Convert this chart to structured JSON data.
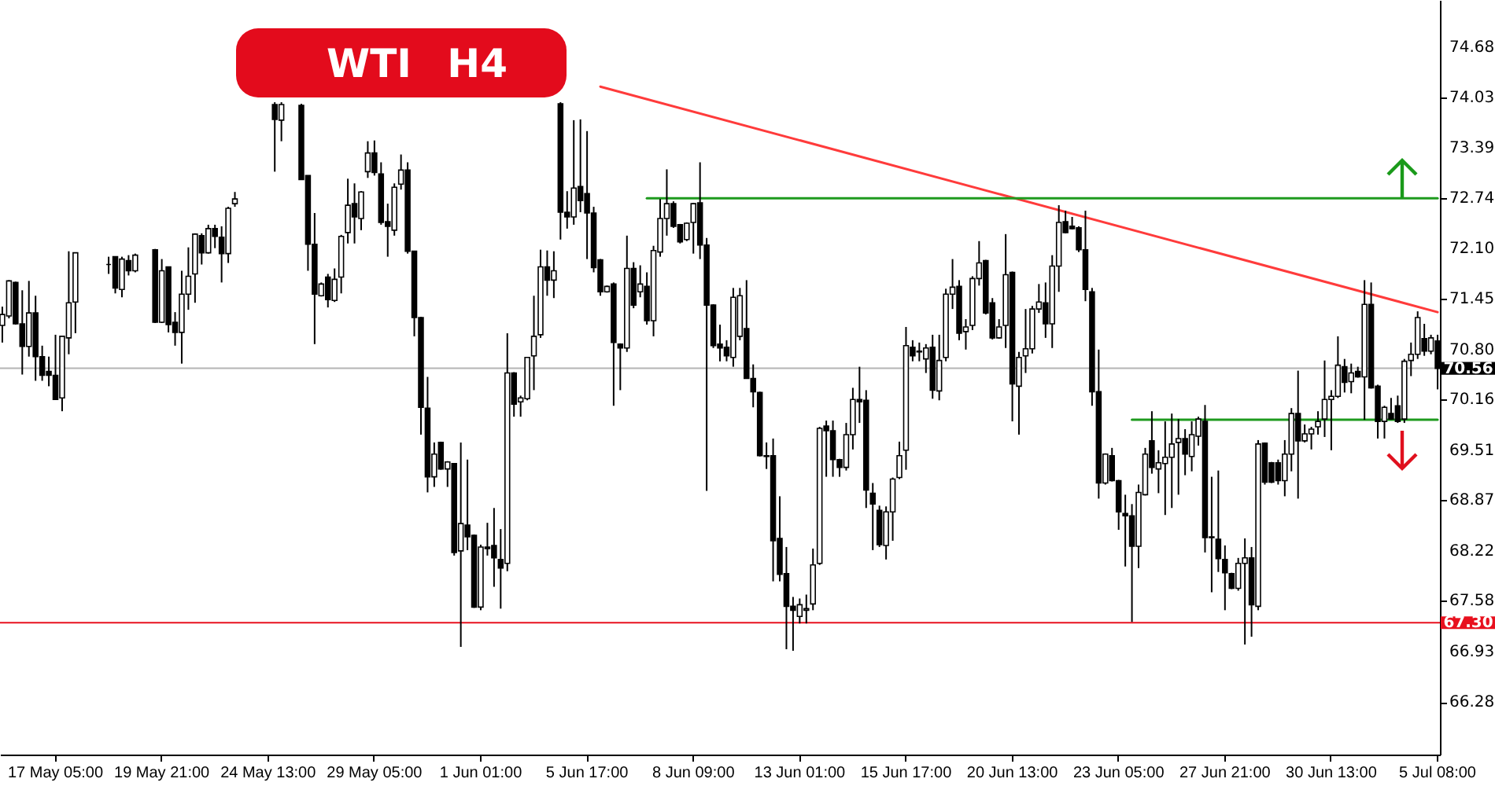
{
  "chart_data": {
    "type": "candlestick",
    "title": "WTI H4",
    "categories": [
      null,
      null,
      null,
      null,
      null,
      null,
      null,
      null,
      "17 May 05:00",
      null,
      null,
      null,
      null,
      null,
      null,
      null,
      null,
      null,
      null,
      null,
      null,
      null,
      null,
      null,
      "19 May 21:00",
      null,
      null,
      null,
      null,
      null,
      null,
      null,
      null,
      null,
      null,
      null,
      null,
      null,
      null,
      null,
      "24 May 13:00",
      null,
      null,
      null,
      null,
      null,
      null,
      null,
      null,
      null,
      null,
      null,
      null,
      null,
      null,
      null,
      "29 May 05:00",
      null,
      null,
      null,
      null,
      null,
      null,
      null,
      null,
      null,
      null,
      null,
      null,
      null,
      null,
      null,
      "1 Jun 01:00",
      null,
      null,
      null,
      null,
      null,
      null,
      null,
      null,
      null,
      null,
      null,
      null,
      null,
      null,
      null,
      "5 Jun 17:00",
      null,
      null,
      null,
      null,
      null,
      null,
      null,
      null,
      null,
      null,
      null,
      null,
      null,
      null,
      null,
      "8 Jun 09:00",
      null,
      null,
      null,
      null,
      null,
      null,
      null,
      null,
      null,
      null,
      null,
      null,
      null,
      null,
      null,
      "13 Jun 01:00",
      null,
      null,
      null,
      null,
      null,
      null,
      null,
      null,
      null,
      null,
      null,
      null,
      null,
      null,
      null,
      "15 Jun 17:00",
      null,
      null,
      null,
      null,
      null,
      null,
      null,
      null,
      null,
      null,
      null,
      null,
      null,
      null,
      null,
      "20 Jun 13:00",
      null,
      null,
      null,
      null,
      null,
      null,
      null,
      null,
      null,
      null,
      null,
      null,
      null,
      null,
      null,
      "23 Jun 05:00",
      null,
      null,
      null,
      null,
      null,
      null,
      null,
      null,
      null,
      null,
      null,
      null,
      null,
      null,
      null,
      "27 Jun 21:00",
      null,
      null,
      null,
      null,
      null,
      null,
      null,
      null,
      null,
      null,
      null,
      null,
      null,
      null,
      null,
      "30 Jun 13:00",
      null,
      null,
      null,
      null,
      null,
      null,
      null,
      null,
      null,
      null,
      null,
      null,
      null,
      null,
      null,
      "5 Jul 08:00"
    ],
    "ohlc": [
      [
        71.11,
        71.35,
        70.89,
        71.25
      ],
      [
        71.23,
        71.69,
        71.2,
        71.68
      ],
      [
        71.66,
        71.67,
        71.12,
        71.13
      ],
      [
        71.13,
        71.56,
        70.48,
        70.84
      ],
      [
        70.84,
        71.68,
        70.71,
        71.27
      ],
      [
        71.27,
        71.49,
        70.4,
        70.71
      ],
      [
        70.71,
        70.85,
        70.4,
        70.47
      ],
      [
        70.52,
        70.71,
        70.33,
        70.47
      ],
      [
        70.47,
        70.99,
        70.16,
        70.16
      ],
      [
        70.18,
        70.97,
        70.01,
        70.97
      ],
      [
        70.95,
        72.06,
        70.74,
        71.4
      ],
      [
        71.41,
        72.04,
        71.01,
        72.04
      ],
      null,
      null,
      null,
      null,
      [
        71.89,
        71.99,
        71.77,
        71.89
      ],
      [
        71.99,
        71.99,
        71.52,
        71.59
      ],
      [
        71.57,
        71.99,
        71.47,
        71.96
      ],
      [
        71.94,
        72.01,
        71.75,
        71.81
      ],
      [
        71.81,
        72.03,
        71.79,
        72.01
      ],
      null,
      null,
      [
        72.08,
        72.09,
        71.14,
        71.15
      ],
      [
        71.15,
        71.96,
        71.14,
        71.81
      ],
      [
        71.86,
        71.86,
        71.02,
        71.12
      ],
      [
        71.15,
        71.28,
        70.85,
        71.02
      ],
      [
        71.02,
        71.81,
        70.62,
        71.51
      ],
      [
        71.51,
        72.11,
        71.31,
        71.74
      ],
      [
        71.77,
        72.29,
        71.4,
        72.28
      ],
      [
        72.26,
        72.29,
        71.89,
        72.04
      ],
      [
        72.04,
        72.4,
        72.03,
        72.35
      ],
      [
        72.35,
        72.4,
        72.1,
        72.25
      ],
      [
        72.24,
        72.38,
        71.66,
        72.03
      ],
      [
        72.03,
        72.63,
        71.91,
        72.61
      ],
      [
        72.67,
        72.82,
        72.63,
        72.73
      ],
      null,
      null,
      null,
      null,
      null,
      [
        73.94,
        73.97,
        73.08,
        73.75
      ],
      [
        73.74,
        73.97,
        73.47,
        73.94
      ],
      null,
      null,
      [
        73.93,
        73.95,
        72.98,
        72.98
      ],
      [
        73.03,
        73.03,
        71.81,
        72.15
      ],
      [
        72.15,
        72.55,
        70.87,
        71.51
      ],
      [
        71.49,
        71.66,
        71.48,
        71.64
      ],
      [
        71.73,
        71.77,
        71.34,
        71.44
      ],
      [
        71.43,
        71.84,
        71.41,
        71.7
      ],
      [
        71.73,
        72.27,
        71.52,
        72.25
      ],
      [
        72.3,
        72.99,
        72.16,
        72.65
      ],
      [
        72.67,
        72.93,
        72.16,
        72.5
      ],
      [
        72.48,
        72.83,
        72.33,
        72.82
      ],
      [
        73.08,
        73.47,
        73.0,
        73.32
      ],
      [
        73.32,
        73.48,
        73.03,
        73.07
      ],
      [
        73.05,
        73.2,
        72.4,
        72.43
      ],
      [
        72.44,
        72.67,
        71.99,
        72.38
      ],
      [
        72.33,
        72.93,
        72.26,
        72.88
      ],
      [
        72.92,
        73.3,
        72.85,
        73.1
      ],
      [
        73.1,
        73.2,
        72.03,
        72.06
      ],
      [
        72.06,
        72.06,
        70.97,
        71.21
      ],
      [
        71.21,
        71.22,
        69.71,
        70.06
      ],
      [
        70.05,
        70.45,
        68.97,
        69.17
      ],
      [
        69.17,
        69.61,
        69.04,
        69.46
      ],
      [
        69.61,
        69.62,
        69.26,
        69.27
      ],
      [
        69.27,
        69.37,
        69.04,
        69.36
      ],
      [
        69.34,
        69.34,
        68.16,
        68.2
      ],
      [
        68.22,
        69.61,
        66.99,
        68.57
      ],
      [
        68.55,
        69.39,
        68.23,
        68.4
      ],
      [
        68.42,
        68.43,
        67.49,
        67.5
      ],
      [
        67.5,
        68.3,
        67.46,
        68.27
      ],
      [
        68.27,
        68.58,
        68.16,
        68.25
      ],
      [
        68.29,
        68.77,
        67.76,
        68.13
      ],
      [
        68.11,
        68.5,
        67.48,
        68.0
      ],
      [
        68.06,
        71.01,
        67.96,
        70.5
      ],
      [
        70.5,
        70.51,
        69.94,
        70.1
      ],
      [
        70.13,
        70.21,
        69.94,
        70.18
      ],
      [
        70.17,
        70.7,
        70.15,
        70.7
      ],
      [
        70.72,
        71.49,
        70.28,
        70.97
      ],
      [
        70.99,
        72.08,
        70.95,
        71.86
      ],
      [
        71.86,
        72.07,
        71.49,
        71.69
      ],
      [
        71.69,
        72.06,
        71.46,
        71.81
      ],
      [
        73.95,
        73.97,
        72.21,
        72.56
      ],
      [
        72.56,
        72.83,
        72.35,
        72.5
      ],
      [
        72.5,
        73.74,
        72.4,
        72.87
      ],
      [
        72.89,
        73.75,
        72.56,
        72.71
      ],
      [
        72.8,
        73.6,
        71.96,
        72.55
      ],
      [
        72.55,
        72.63,
        71.79,
        71.85
      ],
      [
        71.95,
        71.96,
        71.49,
        71.54
      ],
      [
        71.54,
        71.62,
        71.53,
        71.61
      ],
      [
        71.64,
        71.66,
        70.08,
        70.89
      ],
      [
        70.87,
        70.88,
        70.28,
        70.82
      ],
      [
        70.82,
        72.26,
        70.77,
        71.84
      ],
      [
        71.84,
        71.92,
        71.33,
        71.37
      ],
      [
        71.54,
        71.88,
        71.47,
        71.64
      ],
      [
        71.61,
        71.79,
        71.12,
        71.17
      ],
      [
        71.17,
        72.13,
        70.97,
        72.07
      ],
      [
        72.05,
        72.73,
        71.99,
        72.48
      ],
      [
        72.48,
        73.11,
        72.26,
        72.67
      ],
      [
        72.67,
        72.7,
        72.36,
        72.38
      ],
      [
        72.4,
        72.41,
        72.16,
        72.18
      ],
      [
        72.21,
        72.43,
        72.19,
        72.42
      ],
      [
        72.43,
        72.68,
        72.03,
        72.67
      ],
      [
        72.68,
        73.2,
        71.96,
        72.14
      ],
      [
        72.14,
        72.23,
        68.99,
        71.37
      ],
      [
        71.37,
        71.38,
        70.82,
        70.85
      ],
      [
        70.87,
        71.12,
        70.65,
        70.82
      ],
      [
        70.83,
        70.92,
        70.65,
        70.72
      ],
      [
        70.7,
        71.59,
        70.58,
        71.47
      ],
      [
        70.97,
        71.59,
        70.92,
        71.49
      ],
      [
        71.07,
        71.69,
        70.43,
        70.43
      ],
      [
        70.43,
        70.61,
        70.06,
        70.26
      ],
      [
        70.25,
        70.26,
        69.43,
        69.44
      ],
      [
        69.44,
        69.61,
        69.27,
        69.43
      ],
      [
        69.44,
        69.66,
        67.83,
        68.35
      ],
      [
        68.38,
        68.92,
        67.83,
        67.92
      ],
      [
        67.93,
        68.27,
        66.96,
        67.51
      ],
      [
        67.51,
        67.63,
        66.94,
        67.46
      ],
      [
        67.38,
        67.61,
        67.29,
        67.53
      ],
      [
        67.46,
        67.66,
        67.29,
        67.48
      ],
      [
        67.54,
        68.25,
        67.46,
        68.04
      ],
      [
        68.06,
        69.81,
        68.04,
        69.79
      ],
      [
        69.82,
        69.89,
        69.17,
        69.76
      ],
      [
        69.76,
        69.89,
        69.17,
        69.39
      ],
      [
        69.39,
        69.4,
        69.17,
        69.29
      ],
      [
        69.29,
        69.86,
        69.25,
        69.71
      ],
      [
        69.71,
        70.31,
        69.52,
        70.16
      ],
      [
        70.16,
        70.58,
        69.86,
        70.13
      ],
      [
        70.15,
        70.28,
        68.77,
        69.0
      ],
      [
        68.96,
        69.09,
        68.23,
        68.82
      ],
      [
        68.74,
        68.8,
        68.27,
        68.3
      ],
      [
        68.29,
        68.79,
        68.11,
        68.72
      ],
      [
        68.72,
        69.16,
        68.35,
        69.14
      ],
      [
        69.16,
        69.62,
        69.14,
        69.44
      ],
      [
        69.51,
        71.09,
        69.26,
        70.85
      ],
      [
        70.83,
        70.92,
        70.65,
        70.72
      ],
      [
        70.77,
        70.89,
        70.65,
        70.78
      ],
      [
        70.68,
        70.87,
        70.5,
        70.82
      ],
      [
        70.83,
        70.99,
        70.17,
        70.28
      ],
      [
        70.27,
        70.99,
        70.15,
        70.66
      ],
      [
        70.7,
        71.58,
        70.65,
        71.51
      ],
      [
        71.51,
        71.96,
        71.32,
        71.6
      ],
      [
        71.61,
        71.69,
        70.92,
        71.01
      ],
      [
        71.03,
        71.19,
        70.8,
        71.09
      ],
      [
        71.11,
        71.74,
        71.05,
        71.71
      ],
      [
        71.71,
        72.19,
        71.62,
        71.91
      ],
      [
        71.94,
        71.95,
        71.25,
        71.27
      ],
      [
        71.4,
        71.46,
        70.93,
        70.95
      ],
      [
        70.95,
        71.19,
        70.94,
        71.09
      ],
      [
        71.11,
        72.28,
        70.82,
        71.76
      ],
      [
        71.79,
        71.8,
        69.88,
        70.36
      ],
      [
        70.33,
        70.77,
        69.71,
        70.7
      ],
      [
        70.72,
        71.32,
        70.5,
        70.81
      ],
      [
        70.81,
        71.36,
        70.75,
        71.32
      ],
      [
        71.32,
        71.64,
        71.27,
        71.41
      ],
      [
        71.4,
        71.66,
        70.95,
        71.13
      ],
      [
        71.13,
        72.01,
        70.82,
        71.87
      ],
      [
        71.87,
        72.65,
        71.54,
        72.43
      ],
      [
        72.44,
        72.58,
        72.29,
        72.3
      ],
      [
        72.38,
        72.5,
        72.34,
        72.35
      ],
      [
        72.36,
        72.38,
        72.05,
        72.08
      ],
      [
        72.08,
        72.58,
        71.42,
        71.57
      ],
      [
        71.54,
        71.59,
        70.08,
        70.26
      ],
      [
        70.26,
        70.8,
        68.89,
        69.09
      ],
      [
        69.09,
        69.47,
        69.07,
        69.46
      ],
      [
        69.44,
        69.54,
        69.11,
        69.12
      ],
      [
        69.12,
        69.13,
        68.49,
        68.72
      ],
      [
        68.7,
        68.94,
        68.02,
        68.67
      ],
      [
        68.67,
        68.82,
        67.31,
        68.28
      ],
      [
        68.28,
        69.07,
        68.0,
        68.97
      ],
      [
        68.94,
        69.54,
        68.93,
        69.46
      ],
      [
        69.63,
        70.01,
        69.21,
        69.29
      ],
      [
        69.27,
        69.51,
        68.96,
        69.35
      ],
      [
        69.34,
        69.88,
        68.68,
        69.42
      ],
      [
        69.42,
        69.98,
        68.77,
        69.59
      ],
      [
        69.61,
        69.91,
        68.94,
        69.66
      ],
      [
        69.66,
        69.78,
        69.19,
        69.46
      ],
      [
        69.43,
        69.88,
        69.24,
        69.71
      ],
      [
        69.69,
        69.94,
        69.57,
        69.91
      ],
      [
        69.88,
        70.09,
        68.2,
        68.39
      ],
      [
        68.4,
        69.17,
        67.69,
        68.39
      ],
      [
        68.37,
        69.25,
        67.95,
        68.12
      ],
      [
        68.11,
        68.29,
        67.46,
        67.94
      ],
      [
        67.93,
        67.94,
        67.73,
        67.74
      ],
      [
        67.74,
        68.13,
        67.71,
        68.06
      ],
      [
        68.06,
        68.38,
        67.02,
        68.13
      ],
      [
        68.13,
        68.27,
        67.12,
        67.53
      ],
      [
        67.51,
        69.64,
        67.46,
        69.59
      ],
      [
        69.6,
        69.61,
        69.07,
        69.1
      ],
      [
        69.35,
        69.36,
        69.09,
        69.1
      ],
      [
        69.35,
        69.39,
        69.07,
        69.12
      ],
      [
        69.12,
        69.64,
        68.92,
        69.46
      ],
      [
        69.46,
        70.05,
        69.24,
        69.98
      ],
      [
        69.98,
        70.53,
        68.89,
        69.63
      ],
      [
        69.63,
        69.84,
        69.61,
        69.72
      ],
      [
        69.72,
        69.81,
        69.52,
        69.78
      ],
      [
        69.81,
        70.01,
        69.71,
        69.88
      ],
      [
        69.91,
        70.66,
        69.68,
        70.16
      ],
      [
        70.16,
        70.28,
        69.51,
        70.2
      ],
      [
        70.2,
        70.97,
        70.18,
        70.6
      ],
      [
        70.58,
        70.68,
        70.25,
        70.38
      ],
      [
        70.39,
        70.62,
        70.24,
        70.5
      ],
      [
        70.52,
        70.58,
        70.44,
        70.45
      ],
      [
        70.45,
        71.69,
        69.9,
        71.38
      ],
      [
        71.38,
        71.66,
        70.3,
        70.31
      ],
      [
        70.33,
        70.35,
        69.66,
        69.88
      ],
      [
        69.88,
        70.08,
        69.66,
        70.06
      ],
      [
        69.98,
        70.18,
        69.9,
        69.91
      ],
      [
        70.08,
        70.21,
        69.86,
        69.88
      ],
      [
        69.91,
        70.68,
        69.86,
        70.65
      ],
      [
        70.66,
        70.89,
        70.46,
        70.74
      ],
      [
        70.74,
        71.29,
        70.68,
        71.21
      ],
      [
        70.94,
        71.13,
        70.72,
        70.78
      ],
      [
        70.78,
        70.99,
        70.74,
        70.95
      ],
      [
        70.91,
        70.99,
        70.29,
        70.56
      ]
    ],
    "series": [
      {
        "type": "line",
        "color": "#ff3b3b",
        "values": [
          null,
          null,
          null,
          null,
          null,
          null,
          null,
          null,
          null,
          null,
          null,
          null,
          null,
          null,
          null,
          null,
          null,
          null,
          null,
          null,
          null,
          null,
          null,
          null,
          null,
          null,
          null,
          null,
          null,
          null,
          null,
          null,
          null,
          null,
          null,
          null,
          null,
          null,
          null,
          null,
          null,
          null,
          null,
          null,
          null,
          null,
          null,
          null,
          null,
          null,
          null,
          null,
          null,
          null,
          null,
          null,
          null,
          null,
          null,
          null,
          null,
          null,
          null,
          null,
          null,
          null,
          null,
          null,
          null,
          null,
          null,
          null,
          null,
          null,
          null,
          null,
          null,
          null,
          null,
          null,
          null,
          null,
          null,
          null,
          null,
          null,
          null,
          null,
          null,
          null,
          74.17,
          null,
          null,
          null,
          null,
          null,
          null,
          null,
          null,
          null,
          null,
          null,
          null,
          null,
          null,
          null,
          null,
          null,
          null,
          null,
          null,
          null,
          null,
          null,
          null,
          null,
          null,
          null,
          null,
          null,
          null,
          null,
          null,
          null,
          null,
          null,
          null,
          null,
          null,
          null,
          null,
          null,
          null,
          null,
          null,
          null,
          null,
          null,
          null,
          null,
          null,
          null,
          null,
          null,
          null,
          null,
          null,
          null,
          null,
          null,
          null,
          null,
          null,
          null,
          null,
          null,
          null,
          null,
          null,
          null,
          null,
          null,
          null,
          null,
          null,
          null,
          null,
          null,
          null,
          null,
          null,
          null,
          null,
          null,
          null,
          null,
          null,
          null,
          null,
          null,
          null,
          null,
          null,
          null,
          null,
          null,
          null,
          null,
          null,
          null,
          null,
          null,
          null,
          null,
          null,
          null,
          null,
          null,
          null,
          null,
          null,
          null,
          null,
          null,
          null,
          null,
          null,
          null,
          null,
          null,
          null,
          null,
          null,
          null,
          null,
          null,
          71.28
        ]
      },
      {
        "type": "line",
        "color": "#1e9a1e",
        "values": [
          null,
          null,
          null,
          null,
          null,
          null,
          null,
          null,
          null,
          null,
          null,
          null,
          null,
          null,
          null,
          null,
          null,
          null,
          null,
          null,
          null,
          null,
          null,
          null,
          null,
          null,
          null,
          null,
          null,
          null,
          null,
          null,
          null,
          null,
          null,
          null,
          null,
          null,
          null,
          null,
          null,
          null,
          null,
          null,
          null,
          null,
          null,
          null,
          null,
          null,
          null,
          null,
          null,
          null,
          null,
          null,
          null,
          null,
          null,
          null,
          null,
          null,
          null,
          null,
          null,
          null,
          null,
          null,
          null,
          null,
          null,
          null,
          null,
          null,
          null,
          null,
          null,
          null,
          null,
          null,
          null,
          null,
          null,
          null,
          null,
          null,
          null,
          null,
          null,
          null,
          null,
          null,
          null,
          null,
          null,
          null,
          null,
          72.74,
          null,
          null,
          null,
          null,
          null,
          null,
          null,
          null,
          null,
          null,
          null,
          null,
          null,
          null,
          null,
          null,
          null,
          null,
          null,
          null,
          null,
          null,
          null,
          null,
          null,
          null,
          null,
          null,
          null,
          null,
          null,
          null,
          null,
          null,
          null,
          null,
          null,
          null,
          null,
          null,
          null,
          null,
          null,
          null,
          null,
          null,
          null,
          null,
          null,
          null,
          null,
          null,
          null,
          null,
          null,
          null,
          null,
          null,
          null,
          null,
          null,
          null,
          null,
          null,
          null,
          null,
          null,
          null,
          null,
          null,
          null,
          null,
          null,
          null,
          null,
          null,
          null,
          null,
          null,
          null,
          null,
          null,
          null,
          null,
          null,
          null,
          null,
          null,
          null,
          null,
          null,
          null,
          null,
          null,
          null,
          null,
          null,
          null,
          null,
          null,
          null,
          null,
          null,
          null,
          null,
          null,
          null,
          null,
          null,
          null,
          null,
          null,
          null,
          null,
          null,
          null,
          null,
          null,
          72.74
        ]
      },
      {
        "type": "line",
        "color": "#1e9a1e",
        "values": [
          null,
          null,
          null,
          null,
          null,
          null,
          null,
          null,
          null,
          null,
          null,
          null,
          null,
          null,
          null,
          null,
          null,
          null,
          null,
          null,
          null,
          null,
          null,
          null,
          null,
          null,
          null,
          null,
          null,
          null,
          null,
          null,
          null,
          null,
          null,
          null,
          null,
          null,
          null,
          null,
          null,
          null,
          null,
          null,
          null,
          null,
          null,
          null,
          null,
          null,
          null,
          null,
          null,
          null,
          null,
          null,
          null,
          null,
          null,
          null,
          null,
          null,
          null,
          null,
          null,
          null,
          null,
          null,
          null,
          null,
          null,
          null,
          null,
          null,
          null,
          null,
          null,
          null,
          null,
          null,
          null,
          null,
          null,
          null,
          null,
          null,
          null,
          null,
          null,
          null,
          null,
          null,
          null,
          null,
          null,
          null,
          null,
          null,
          null,
          null,
          null,
          null,
          null,
          null,
          null,
          null,
          null,
          null,
          null,
          null,
          null,
          null,
          null,
          null,
          null,
          null,
          null,
          null,
          null,
          null,
          null,
          null,
          null,
          null,
          null,
          null,
          null,
          null,
          null,
          null,
          null,
          null,
          null,
          null,
          null,
          null,
          null,
          null,
          null,
          null,
          null,
          null,
          null,
          null,
          null,
          null,
          null,
          null,
          null,
          null,
          null,
          null,
          null,
          null,
          null,
          null,
          null,
          null,
          null,
          null,
          null,
          null,
          null,
          null,
          null,
          null,
          null,
          null,
          null,
          null,
          69.9,
          null,
          null,
          null,
          null,
          null,
          null,
          null,
          null,
          null,
          null,
          null,
          null,
          null,
          null,
          null,
          null,
          null,
          null,
          null,
          null,
          null,
          null,
          null,
          null,
          null,
          null,
          null,
          null,
          null,
          null,
          null,
          null,
          null,
          null,
          null,
          null,
          null,
          null,
          null,
          null,
          null,
          null,
          null,
          null,
          null,
          69.9
        ]
      }
    ],
    "ylim": [
      65.61,
      75.28
    ],
    "yticks": [
      66.28,
      66.93,
      67.58,
      68.22,
      68.87,
      69.51,
      70.16,
      {
        "value": 70.8,
        "label": "70.80"
      },
      71.45,
      {
        "value": 72.1,
        "label": "72.10"
      },
      72.74,
      73.39,
      74.03,
      74.68
    ],
    "ref_lines": [
      {
        "axis": "y",
        "value": 70.56,
        "label": "70.56",
        "color": "#b4b4b4"
      },
      {
        "axis": "y",
        "value": 67.3,
        "label": "67.30",
        "color": "#e8101e"
      }
    ]
  }
}
